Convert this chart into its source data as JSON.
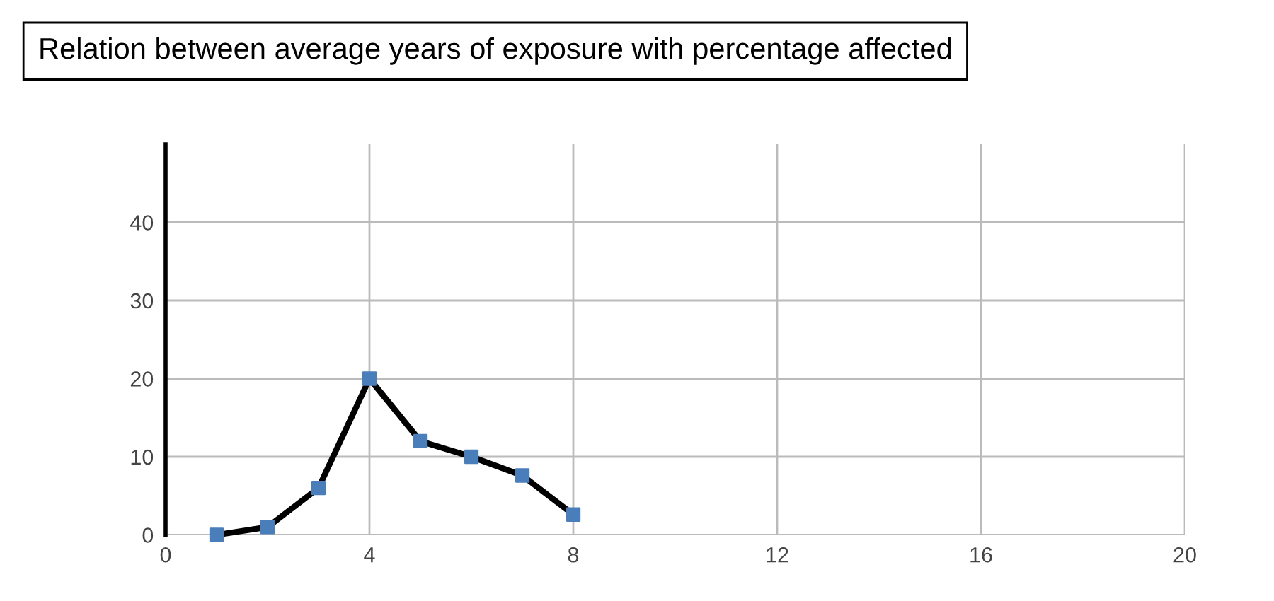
{
  "chart_data": {
    "type": "line",
    "title": "Relation between average years of exposure with percentage affected",
    "x": [
      1,
      2,
      3,
      4,
      5,
      6,
      7,
      8
    ],
    "series": [
      {
        "color": "#000000",
        "colors": [
          "#4a7ebb",
          "#4a7ebb",
          "#4a7ebb",
          "#4a7ebb",
          "#4a7ebb",
          "#4a7ebb",
          "#4a7ebb",
          "#4a7ebb"
        ],
        "values": [
          0,
          1,
          6,
          20,
          12,
          10,
          7.6,
          2.6
        ]
      }
    ],
    "marker": "square",
    "line_style": "solid",
    "xlim": [
      0,
      20
    ],
    "xticks": [
      0,
      4,
      8,
      12,
      16,
      20
    ],
    "ylim": [
      0,
      50
    ],
    "yticks": [
      0,
      10,
      20,
      30,
      40
    ],
    "grid": true
  }
}
